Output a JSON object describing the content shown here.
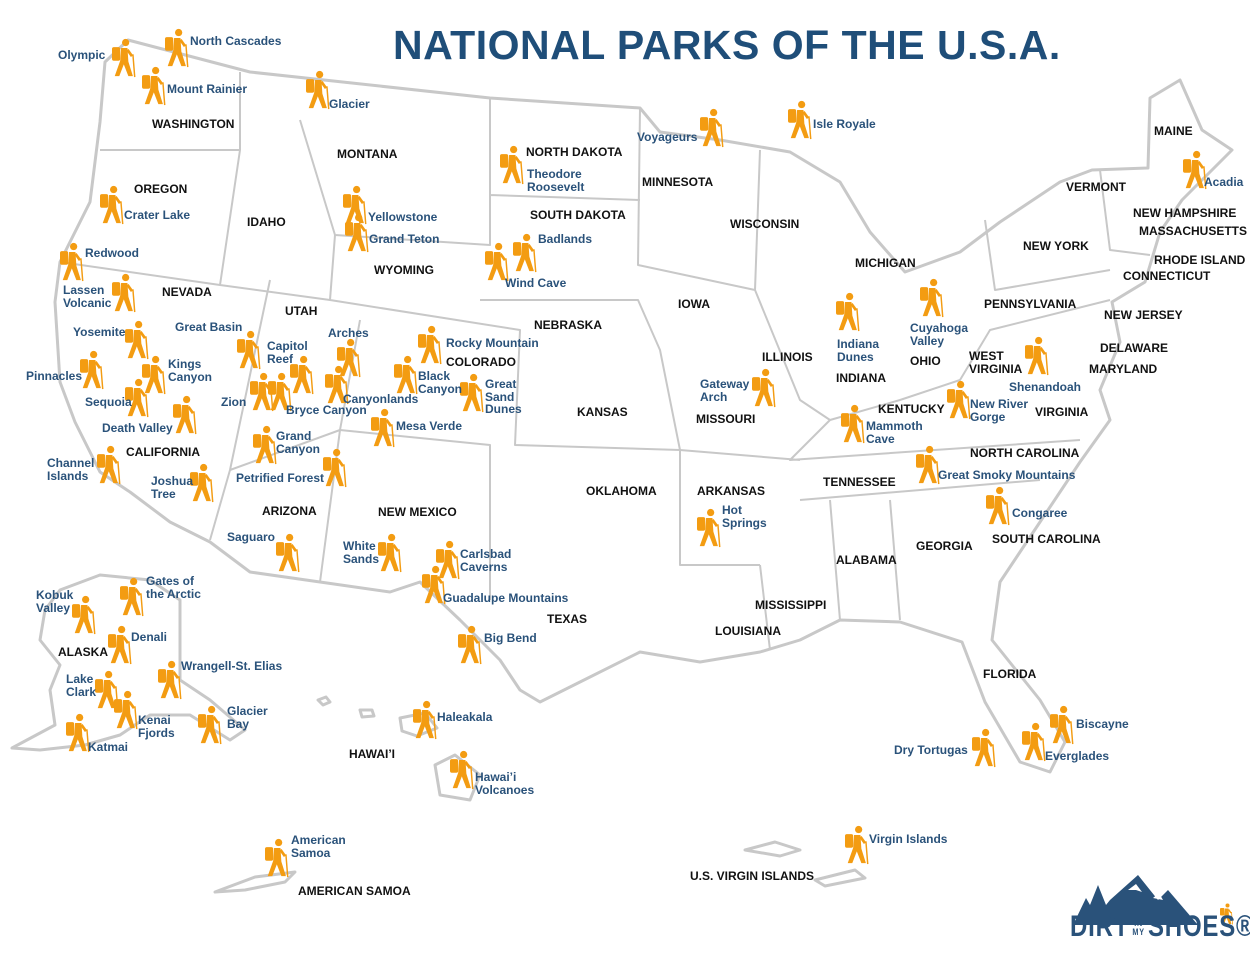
{
  "title": "NATIONAL PARKS OF THE U.S.A.",
  "colors": {
    "title": "#1f4e79",
    "park_label": "#2a527a",
    "hiker_icon": "#f39c12",
    "state_border": "#c8c8c8"
  },
  "icon": "hiker-icon",
  "parks": [
    "Olympic",
    "North Cascades",
    "Mount Rainier",
    "Glacier",
    "Voyageurs",
    "Isle Royale",
    "Theodore\nRoosevelt",
    "Acadia",
    "Crater Lake",
    "Yellowstone",
    "Grand Teton",
    "Badlands",
    "Wind Cave",
    "Redwood",
    "Lassen\nVolcanic",
    "Great Basin",
    "Arches",
    "Capitol\nReef",
    "Rocky Mountain",
    "Yosemite",
    "Kings\nCanyon",
    "Pinnacles",
    "Black\nCanyon",
    "Great\nSand\nDunes",
    "Canyonlands",
    "Bryce Canyon",
    "Zion",
    "Sequoia",
    "Mesa Verde",
    "Death Valley",
    "Gateway\nArch",
    "Indiana\nDunes",
    "Cuyahoga\nValley",
    "Shenandoah",
    "New River\nGorge",
    "Mammoth\nCave",
    "Grand\nCanyon",
    "Channel\nIslands",
    "Joshua\nTree",
    "Petrified Forest",
    "Great Smoky Mountains",
    "Hot\nSprings",
    "Congaree",
    "Saguaro",
    "White\nSands",
    "Carlsbad\nCaverns",
    "Guadalupe Mountains",
    "Gates of\nthe Arctic",
    "Kobuk\nValley",
    "Denali",
    "Big Bend",
    "Wrangell-St. Elias",
    "Lake\nClark",
    "Kenai\nFjords",
    "Glacier\nBay",
    "Haleakala",
    "Katmai",
    "Biscayne",
    "Dry Tortugas",
    "Everglades",
    "Hawai’i\nVolcanoes",
    "American\nSamoa",
    "Virgin Islands"
  ],
  "states": [
    "WASHINGTON",
    "MONTANA",
    "NORTH DAKOTA",
    "MINNESOTA",
    "MAINE",
    "OREGON",
    "IDAHO",
    "SOUTH DAKOTA",
    "WISCONSIN",
    "VERMONT",
    "NEW HAMPSHIRE",
    "MASSACHUSETTS",
    "NEW YORK",
    "RHODE ISLAND",
    "CONNECTICUT",
    "WYOMING",
    "MICHIGAN",
    "NEVADA",
    "UTAH",
    "IOWA",
    "PENNSYLVANIA",
    "NEW JERSEY",
    "NEBRASKA",
    "ILLINOIS",
    "COLORADO",
    "OHIO",
    "WEST\nVIRGINIA",
    "DELAWARE",
    "MARYLAND",
    "INDIANA",
    "KANSAS",
    "MISSOURI",
    "KENTUCKY",
    "VIRGINIA",
    "CALIFORNIA",
    "NORTH CAROLINA",
    "TENNESSEE",
    "OKLAHOMA",
    "ARKANSAS",
    "ARIZONA",
    "NEW MEXICO",
    "SOUTH CAROLINA",
    "GEORGIA",
    "ALABAMA",
    "MISSISSIPPI",
    "TEXAS",
    "LOUISIANA",
    "ALASKA",
    "FLORIDA",
    "HAWAI’I",
    "AMERICAN SAMOA",
    "U.S. VIRGIN ISLANDS"
  ],
  "logo": {
    "name": "DIRT IN MY SHOES",
    "part1": "DIRT",
    "part2a": "IN",
    "part2b": "MY",
    "part3": "SHOES®"
  }
}
